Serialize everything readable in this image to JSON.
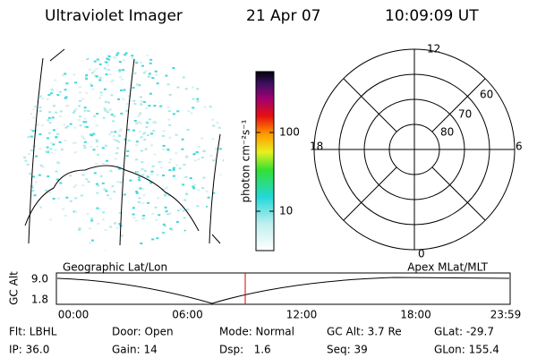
{
  "header": {
    "title": "Ultraviolet Imager",
    "date": "21 Apr 07",
    "time": "10:09:09 UT"
  },
  "colorbar": {
    "label": "photon cm⁻²s⁻¹",
    "ticks": [
      10,
      100
    ]
  },
  "polar": {
    "mlt_labels": [
      "12",
      "18",
      "6",
      "0"
    ],
    "lat_labels": [
      "60",
      "70",
      "80"
    ]
  },
  "altitude_plot": {
    "left_title": "Geographic Lat/Lon",
    "right_title": "Apex MLat/MLT",
    "axis_label": "GC Alt",
    "y_labels": [
      "9.0",
      "1.8"
    ],
    "x_labels": [
      "00:00",
      "06:00",
      "12:00",
      "18:00",
      "23:59"
    ]
  },
  "footer": {
    "rows": [
      [
        "Flt: LBHL",
        "Door: Open",
        "Mode: Normal",
        "GC Alt: 3.7 Re",
        "GLat: -29.7"
      ],
      [
        "IP: 36.0",
        "Gain: 14",
        "Dsp:   1.6",
        "Seq: 39",
        "GLon: 155.4"
      ]
    ]
  }
}
